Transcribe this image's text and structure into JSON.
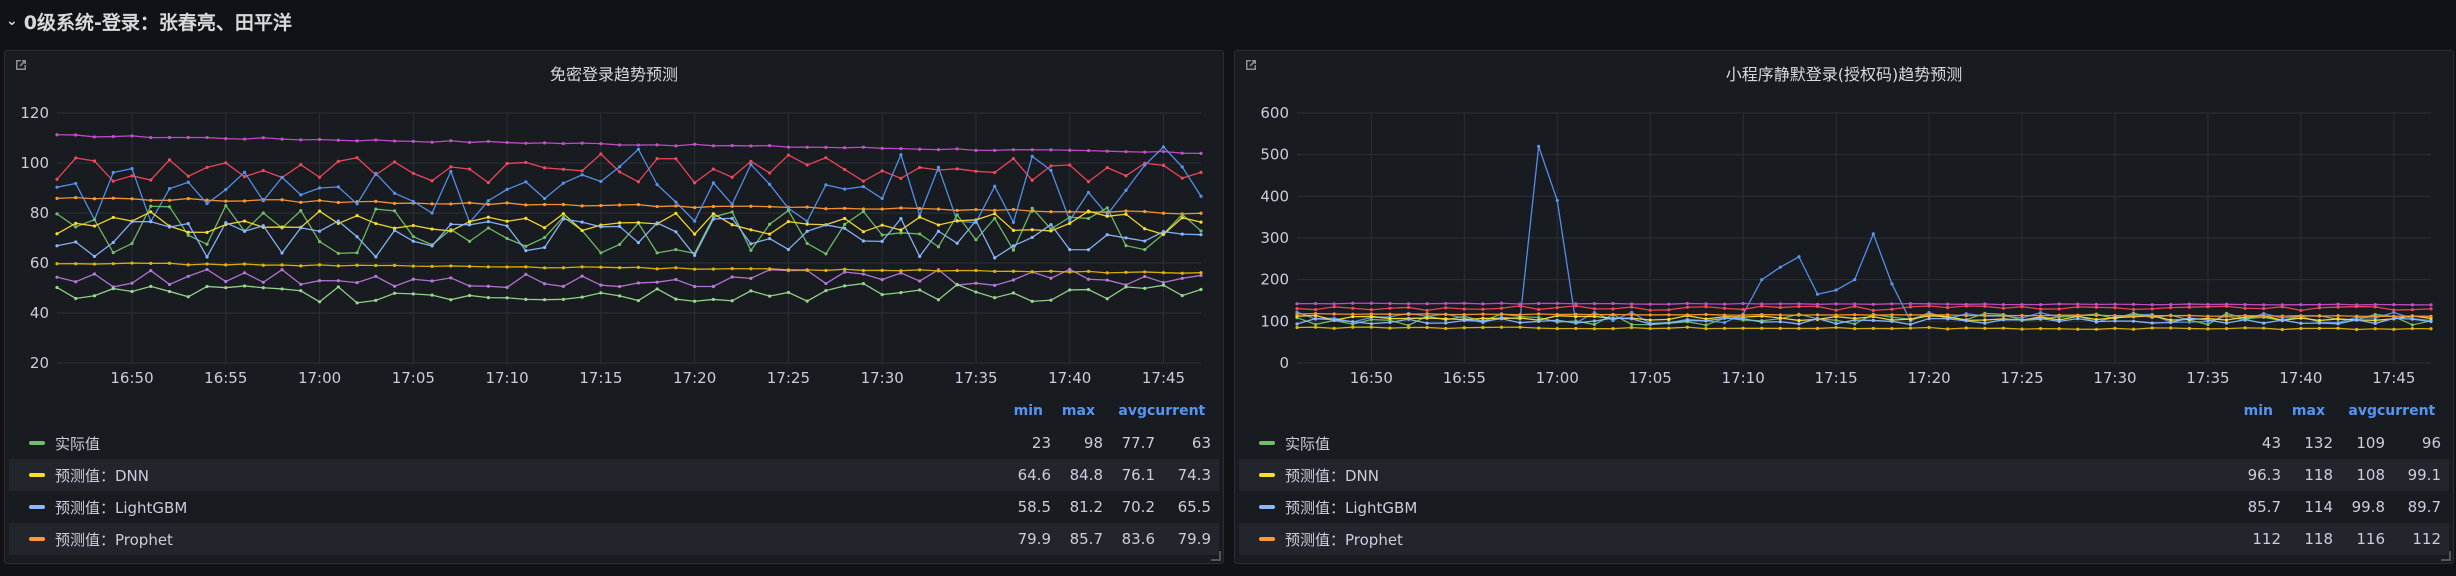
{
  "row": {
    "title": "0级系统-登录：张春亮、田平洋"
  },
  "panels": [
    {
      "title": "免密登录趋势预测",
      "legend_headers": {
        "min": "min",
        "max": "max",
        "avg": "avg",
        "current": "current"
      },
      "legend": [
        {
          "name": "实际值",
          "color": "#73bf69",
          "min": "23",
          "max": "98",
          "avg": "77.7",
          "current": "63"
        },
        {
          "name": "预测值：DNN",
          "color": "#fade2a",
          "min": "64.6",
          "max": "84.8",
          "avg": "76.1",
          "current": "74.3"
        },
        {
          "name": "预测值：LightGBM",
          "color": "#8ab8ff",
          "min": "58.5",
          "max": "81.2",
          "avg": "70.2",
          "current": "65.5"
        },
        {
          "name": "预测值：Prophet",
          "color": "#ff9830",
          "min": "79.9",
          "max": "85.7",
          "avg": "83.6",
          "current": "79.9"
        }
      ]
    },
    {
      "title": "小程序静默登录(授权码)趋势预测",
      "legend_headers": {
        "min": "min",
        "max": "max",
        "avg": "avg",
        "current": "current"
      },
      "legend": [
        {
          "name": "实际值",
          "color": "#73bf69",
          "min": "43",
          "max": "132",
          "avg": "109",
          "current": "96"
        },
        {
          "name": "预测值：DNN",
          "color": "#fade2a",
          "min": "96.3",
          "max": "118",
          "avg": "108",
          "current": "99.1"
        },
        {
          "name": "预测值：LightGBM",
          "color": "#8ab8ff",
          "min": "85.7",
          "max": "114",
          "avg": "99.8",
          "current": "89.7"
        },
        {
          "name": "预测值：Prophet",
          "color": "#ff9830",
          "min": "112",
          "max": "118",
          "avg": "116",
          "current": "112"
        }
      ]
    }
  ],
  "chart_data": [
    {
      "type": "line",
      "x_ticks": [
        "16:50",
        "16:55",
        "17:00",
        "17:05",
        "17:10",
        "17:15",
        "17:20",
        "17:25",
        "17:30",
        "17:35",
        "17:40",
        "17:45"
      ],
      "x_range": [
        "16:46",
        "17:47"
      ],
      "y_ticks": [
        20,
        40,
        60,
        80,
        100,
        120
      ],
      "ylim": [
        20,
        120
      ],
      "grid": true,
      "series": [
        {
          "color": "#c34ec9",
          "shape": "flat",
          "start": 111,
          "end": 104,
          "amp": 0.4
        },
        {
          "color": "#f2495c",
          "shape": "noisy",
          "base": 98,
          "amp": 6
        },
        {
          "color": "#ff9830",
          "shape": "flat",
          "start": 86,
          "end": 80,
          "amp": 0.5
        },
        {
          "color": "#5794f2",
          "shape": "noisy",
          "base": 88,
          "amp": 12,
          "spike": 3
        },
        {
          "name": "实际值",
          "color": "#73bf69",
          "shape": "noisy",
          "base": 73,
          "amp": 10
        },
        {
          "name": "预测值：DNN",
          "color": "#fade2a",
          "shape": "noisy",
          "base": 76,
          "amp": 5
        },
        {
          "name": "预测值：LightGBM",
          "color": "#8ab8ff",
          "shape": "noisy",
          "base": 70,
          "amp": 8
        },
        {
          "color": "#b877d9",
          "shape": "noisy",
          "base": 54,
          "amp": 4
        },
        {
          "color": "#96d98d",
          "shape": "noisy",
          "base": 48,
          "amp": 4
        },
        {
          "color": "#e0b400",
          "shape": "flat",
          "start": 60,
          "end": 56,
          "amp": 0.3
        }
      ]
    },
    {
      "type": "line",
      "x_ticks": [
        "16:50",
        "16:55",
        "17:00",
        "17:05",
        "17:10",
        "17:15",
        "17:20",
        "17:25",
        "17:30",
        "17:35",
        "17:40",
        "17:45"
      ],
      "x_range": [
        "16:46",
        "17:47"
      ],
      "y_ticks": [
        0,
        100,
        200,
        300,
        400,
        500,
        600
      ],
      "ylim": [
        0,
        600
      ],
      "grid": true,
      "series": [
        {
          "color": "#5794f2",
          "shape": "noisy",
          "base": 110,
          "amp": 15,
          "peaks": [
            [
              13,
              520
            ],
            [
              14,
              390
            ],
            [
              25,
              200
            ],
            [
              26,
              230
            ],
            [
              27,
              255
            ],
            [
              28,
              165
            ],
            [
              29,
              175
            ],
            [
              30,
              200
            ],
            [
              31,
              310
            ],
            [
              32,
              190
            ]
          ]
        },
        {
          "color": "#c34ec9",
          "shape": "flat",
          "start": 143,
          "end": 140,
          "amp": 1
        },
        {
          "color": "#f2495c",
          "shape": "noisy",
          "base": 132,
          "amp": 6
        },
        {
          "name": "实际值",
          "color": "#73bf69",
          "shape": "noisy",
          "base": 105,
          "amp": 15
        },
        {
          "name": "预测值：DNN",
          "color": "#fade2a",
          "shape": "noisy",
          "base": 108,
          "amp": 6
        },
        {
          "name": "预测值：LightGBM",
          "color": "#8ab8ff",
          "shape": "noisy",
          "base": 100,
          "amp": 8
        },
        {
          "name": "预测值：Prophet",
          "color": "#ff9830",
          "shape": "flat",
          "start": 118,
          "end": 112,
          "amp": 1
        },
        {
          "color": "#e0b400",
          "shape": "flat",
          "start": 85,
          "end": 82,
          "amp": 2
        }
      ]
    }
  ]
}
